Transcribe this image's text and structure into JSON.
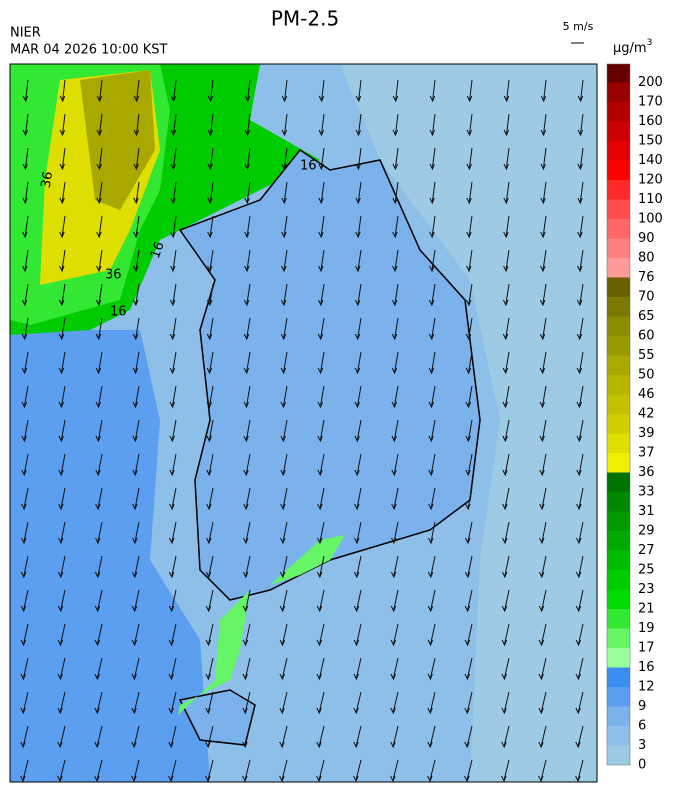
{
  "header": {
    "title": "PM-2.5",
    "agency": "NIER",
    "timestamp": "MAR 04 2026 10:00 KST",
    "wind_scale": "5 m/s"
  },
  "colorbar": {
    "unit_base": "μg/m",
    "unit_exponent": "3",
    "levels": [
      0,
      3,
      6,
      9,
      12,
      16,
      17,
      19,
      21,
      23,
      25,
      27,
      29,
      31,
      33,
      36,
      37,
      39,
      42,
      46,
      50,
      55,
      60,
      65,
      70,
      76,
      80,
      90,
      100,
      110,
      120,
      140,
      150,
      160,
      170,
      200
    ],
    "colors": [
      "#9dcbe5",
      "#8dbfe8",
      "#7cb2ec",
      "#5c9eef",
      "#3b8ef0",
      "#99ff99",
      "#66f566",
      "#33e833",
      "#00dd00",
      "#00cc00",
      "#00bb00",
      "#00aa00",
      "#009900",
      "#008800",
      "#007400",
      "#eeee00",
      "#dede00",
      "#cece00",
      "#c2c200",
      "#b5b500",
      "#a8a800",
      "#9a9a00",
      "#8c8c00",
      "#7c7800",
      "#6a6000",
      "#ff9a9a",
      "#ff8080",
      "#ff6666",
      "#ff4c4c",
      "#ff2a2a",
      "#ff0000",
      "#e60000",
      "#cc0000",
      "#b30000",
      "#990000",
      "#660000"
    ]
  },
  "contour_labels": [
    "36",
    "36",
    "16",
    "16",
    "16"
  ]
}
